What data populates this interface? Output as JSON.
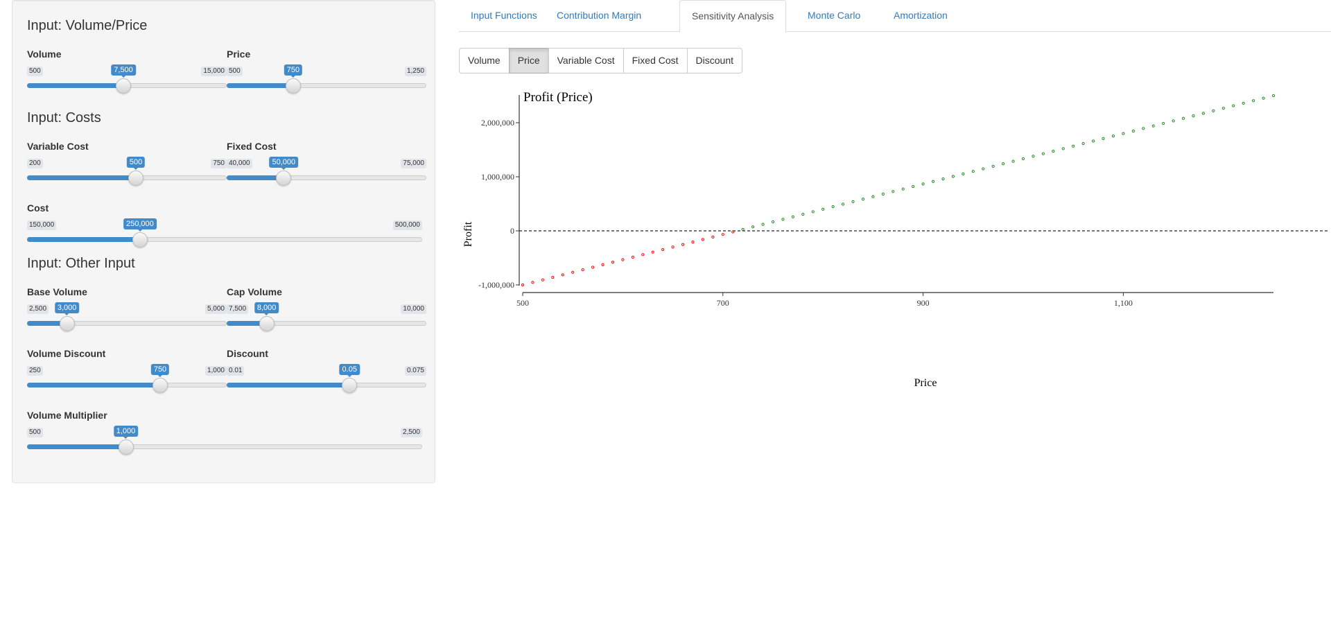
{
  "sidebar": {
    "sections": {
      "volume_price": "Input: Volume/Price",
      "costs": "Input: Costs",
      "other": "Input: Other Input"
    },
    "sliders": {
      "volume": {
        "label": "Volume",
        "min": "500",
        "max": "15,000",
        "value": "7,500",
        "fraction": 0.4828
      },
      "price": {
        "label": "Price",
        "min": "500",
        "max": "1,250",
        "value": "750",
        "fraction": 0.3333
      },
      "variable_cost": {
        "label": "Variable Cost",
        "min": "200",
        "max": "750",
        "value": "500",
        "fraction": 0.5455
      },
      "fixed_cost": {
        "label": "Fixed Cost",
        "min": "40,000",
        "max": "75,000",
        "value": "50,000",
        "fraction": 0.2857
      },
      "cost": {
        "label": "Cost",
        "min": "150,000",
        "max": "500,000",
        "value": "250,000",
        "fraction": 0.2857
      },
      "base_volume": {
        "label": "Base Volume",
        "min": "2,500",
        "max": "5,000",
        "value": "3,000",
        "fraction": 0.2
      },
      "cap_volume": {
        "label": "Cap Volume",
        "min": "7,500",
        "max": "10,000",
        "value": "8,000",
        "fraction": 0.2
      },
      "volume_discount": {
        "label": "Volume Discount",
        "min": "250",
        "max": "1,000",
        "value": "750",
        "fraction": 0.6667
      },
      "discount": {
        "label": "Discount",
        "min": "0.01",
        "max": "0.075",
        "value": "0.05",
        "fraction": 0.6154
      },
      "volume_multiplier": {
        "label": "Volume Multiplier",
        "min": "500",
        "max": "2,500",
        "value": "1,000",
        "fraction": 0.25
      }
    }
  },
  "tabs": [
    {
      "label": "Input Functions",
      "active": false
    },
    {
      "label": "Contribution Margin",
      "active": false
    },
    {
      "label": "Sensitivity Analysis",
      "active": true
    },
    {
      "label": "Monte Carlo",
      "active": false
    },
    {
      "label": "Amortization",
      "active": false
    }
  ],
  "buttons": [
    {
      "label": "Volume",
      "active": false
    },
    {
      "label": "Price",
      "active": true
    },
    {
      "label": "Variable Cost",
      "active": false
    },
    {
      "label": "Fixed Cost",
      "active": false
    },
    {
      "label": "Discount",
      "active": false
    }
  ],
  "colors": {
    "accent": "#428bca",
    "link": "#337ab7",
    "profit_positive": "#228b22",
    "profit_negative": "#ff0000"
  },
  "chart_data": {
    "type": "scatter",
    "title": "Profit (Price)",
    "xlabel": "Price",
    "ylabel": "Profit",
    "xlim": [
      500,
      1250
    ],
    "ylim": [
      -1000000,
      2500000
    ],
    "x_ticks": [
      500,
      700,
      900,
      1100
    ],
    "x_tick_labels": [
      "500",
      "700",
      "900",
      "1,100"
    ],
    "y_ticks": [
      -1000000,
      0,
      1000000,
      2000000
    ],
    "y_tick_labels": [
      "-1,000,000",
      "0",
      "1,000,000",
      "2,000,000"
    ],
    "reference_line": {
      "y": 0,
      "style": "dashed"
    },
    "series": {
      "x_start": 500,
      "x_end": 1250,
      "x_step": 10,
      "y_at_start": -1000000,
      "y_at_end": 2500000,
      "note_color_rule": "negative profit red, positive profit green"
    }
  }
}
